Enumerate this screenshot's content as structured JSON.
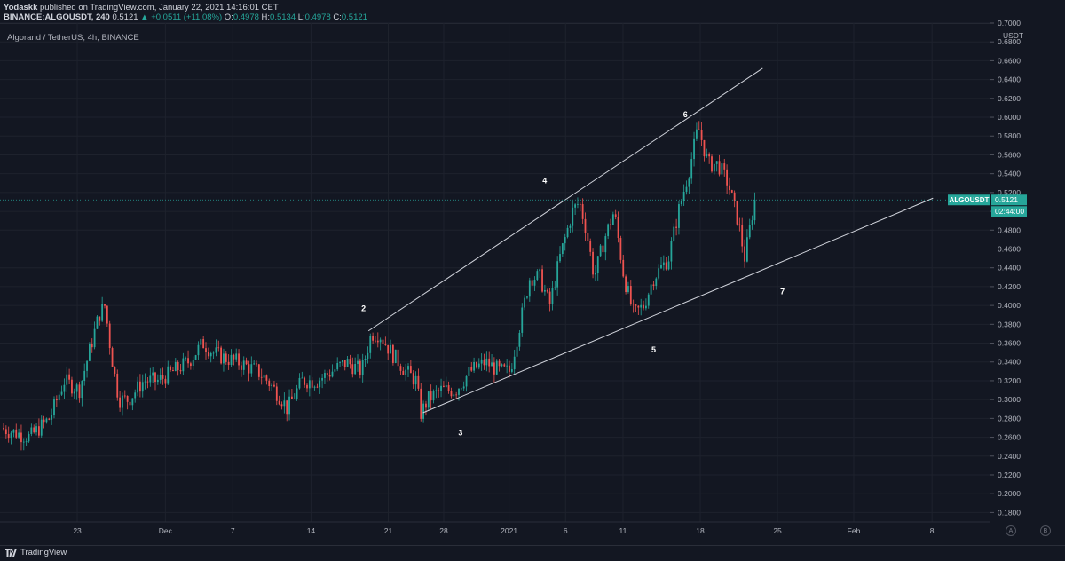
{
  "header": {
    "author": "Yodaskk",
    "published_text": "published on TradingView.com, January 22, 2021 14:16:01 CET",
    "symbol_line": "BINANCE:ALGOUSDT, 240",
    "last": "0.5121",
    "change": "▲ +0.0511 (+11.08%)",
    "o_label": "O:",
    "o_value": "0.4978",
    "h_label": "H:",
    "h_value": "0.5134",
    "l_label": "L:",
    "l_value": "0.4978",
    "c_label": "C:",
    "c_value": "0.5121"
  },
  "legend": "Algorand / TetherUS, 4h, BINANCE",
  "price_tag": {
    "symbol": "ALGOUSDT",
    "price": "0.5121",
    "countdown": "02:44:00"
  },
  "footer": {
    "brand": "TradingView",
    "btn_a": "A",
    "btn_b": "B"
  },
  "colors": {
    "background": "#131722",
    "up": "#26a69a",
    "down": "#ef5350",
    "line": "#d1d4dc",
    "grid": "#1e222d"
  },
  "chart_data": {
    "type": "candlestick",
    "title": "Algorand / TetherUS, 4h, BINANCE",
    "y_unit": "USDT",
    "ylim": [
      0.17,
      0.7
    ],
    "y_ticks": [
      "0.7000",
      "0.6800",
      "0.6600",
      "0.6400",
      "0.6200",
      "0.6000",
      "0.5800",
      "0.5600",
      "0.5400",
      "0.5200",
      "0.5000",
      "0.4800",
      "0.4600",
      "0.4400",
      "0.4200",
      "0.4000",
      "0.3800",
      "0.3600",
      "0.3400",
      "0.3200",
      "0.3000",
      "0.2800",
      "0.2600",
      "0.2400",
      "0.2200",
      "0.2000",
      "0.1800"
    ],
    "x_ticks": [
      {
        "label": "23",
        "pos": 0.078
      },
      {
        "label": "Dec",
        "pos": 0.167
      },
      {
        "label": "7",
        "pos": 0.235
      },
      {
        "label": "14",
        "pos": 0.314
      },
      {
        "label": "21",
        "pos": 0.392
      },
      {
        "label": "28",
        "pos": 0.448
      },
      {
        "label": "2021",
        "pos": 0.514
      },
      {
        "label": "6",
        "pos": 0.571
      },
      {
        "label": "11",
        "pos": 0.629
      },
      {
        "label": "18",
        "pos": 0.707
      },
      {
        "label": "25",
        "pos": 0.785
      },
      {
        "label": "Feb",
        "pos": 0.862
      },
      {
        "label": "8",
        "pos": 0.941
      }
    ],
    "waypoints": [
      [
        0.0,
        0.27
      ],
      [
        0.03,
        0.26
      ],
      [
        0.05,
        0.28
      ],
      [
        0.065,
        0.32
      ],
      [
        0.08,
        0.31
      ],
      [
        0.09,
        0.35
      ],
      [
        0.1,
        0.39
      ],
      [
        0.106,
        0.4
      ],
      [
        0.112,
        0.35
      ],
      [
        0.12,
        0.3
      ],
      [
        0.13,
        0.3
      ],
      [
        0.145,
        0.32
      ],
      [
        0.16,
        0.32
      ],
      [
        0.175,
        0.33
      ],
      [
        0.19,
        0.34
      ],
      [
        0.205,
        0.36
      ],
      [
        0.215,
        0.35
      ],
      [
        0.225,
        0.345
      ],
      [
        0.24,
        0.34
      ],
      [
        0.26,
        0.33
      ],
      [
        0.27,
        0.32
      ],
      [
        0.285,
        0.3
      ],
      [
        0.29,
        0.29
      ],
      [
        0.305,
        0.32
      ],
      [
        0.32,
        0.32
      ],
      [
        0.335,
        0.33
      ],
      [
        0.35,
        0.34
      ],
      [
        0.365,
        0.33
      ],
      [
        0.375,
        0.37
      ],
      [
        0.383,
        0.37
      ],
      [
        0.395,
        0.35
      ],
      [
        0.41,
        0.33
      ],
      [
        0.42,
        0.32
      ],
      [
        0.425,
        0.285
      ],
      [
        0.432,
        0.3
      ],
      [
        0.445,
        0.31
      ],
      [
        0.46,
        0.31
      ],
      [
        0.475,
        0.33
      ],
      [
        0.49,
        0.34
      ],
      [
        0.505,
        0.33
      ],
      [
        0.515,
        0.33
      ],
      [
        0.525,
        0.38
      ],
      [
        0.535,
        0.43
      ],
      [
        0.545,
        0.43
      ],
      [
        0.555,
        0.4
      ],
      [
        0.565,
        0.45
      ],
      [
        0.578,
        0.5
      ],
      [
        0.585,
        0.51
      ],
      [
        0.592,
        0.48
      ],
      [
        0.6,
        0.43
      ],
      [
        0.61,
        0.47
      ],
      [
        0.62,
        0.5
      ],
      [
        0.63,
        0.43
      ],
      [
        0.64,
        0.39
      ],
      [
        0.65,
        0.4
      ],
      [
        0.66,
        0.43
      ],
      [
        0.675,
        0.45
      ],
      [
        0.685,
        0.5
      ],
      [
        0.695,
        0.54
      ],
      [
        0.705,
        0.59
      ],
      [
        0.715,
        0.55
      ],
      [
        0.725,
        0.55
      ],
      [
        0.735,
        0.53
      ],
      [
        0.745,
        0.49
      ],
      [
        0.752,
        0.45
      ],
      [
        0.76,
        0.5
      ],
      [
        0.764,
        0.51
      ]
    ],
    "annotations": [
      {
        "label": "2",
        "x": 0.367,
        "y": 0.394
      },
      {
        "label": "3",
        "x": 0.465,
        "y": 0.262
      },
      {
        "label": "4",
        "x": 0.55,
        "y": 0.53
      },
      {
        "label": "5",
        "x": 0.66,
        "y": 0.35
      },
      {
        "label": "6",
        "x": 0.692,
        "y": 0.6
      },
      {
        "label": "7",
        "x": 0.79,
        "y": 0.412
      }
    ],
    "trendlines": [
      {
        "name": "upper",
        "x1": 0.372,
        "y1": 0.373,
        "x2": 0.77,
        "y2": 0.652
      },
      {
        "name": "lower",
        "x1": 0.427,
        "y1": 0.286,
        "x2": 0.942,
        "y2": 0.514
      }
    ],
    "last_price": 0.5121
  }
}
